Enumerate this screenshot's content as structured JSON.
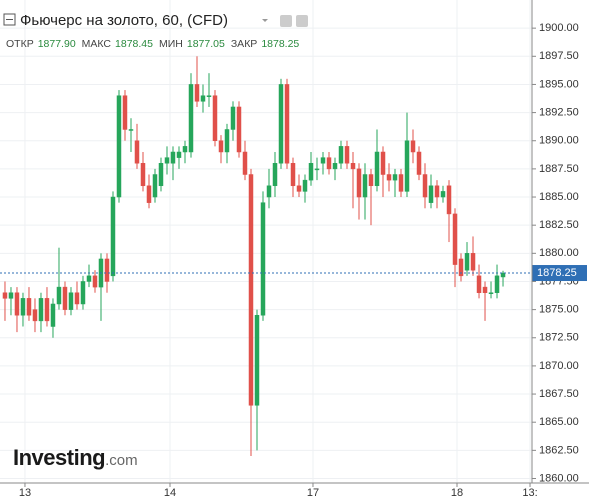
{
  "chart_data": {
    "type": "candlestick",
    "title": "Фьючерс на золото, 60, (CFD)",
    "ohlc_header": [
      {
        "name": "ОТКР",
        "value": "1877.90"
      },
      {
        "name": "МАКС",
        "value": "1878.45"
      },
      {
        "name": "МИН",
        "value": "1877.05"
      },
      {
        "name": "ЗАКР",
        "value": "1878.25"
      }
    ],
    "watermark": "Investing",
    "watermark_suffix": ".com",
    "up_color": "#26a65b",
    "down_color": "#e0504a",
    "last_price_color": "#2f6fb5",
    "grid": true,
    "open": [
      1876.5,
      1876,
      1876.5,
      1874.5,
      1876,
      1875,
      1874,
      1876,
      1873.5,
      1875.5,
      1877,
      1875,
      1876.5,
      1875.5,
      1877.5,
      1878,
      1877,
      1879.5,
      1878,
      1885,
      1894,
      1891,
      1890,
      1888,
      1886,
      1885,
      1886,
      1888,
      1888,
      1888.5,
      1889,
      1889,
      1895,
      1893.5,
      1894,
      1894,
      1890,
      1889,
      1891,
      1893,
      1889,
      1887,
      1866.5,
      1874.5,
      1885,
      1886,
      1888,
      1895,
      1888,
      1886,
      1885.5,
      1886.5,
      1887.5,
      1888,
      1888.5,
      1887.5,
      1888,
      1889.5,
      1888,
      1887.5,
      1885,
      1887,
      1886,
      1889,
      1887,
      1886.5,
      1887,
      1885.5,
      1890,
      1889,
      1887,
      1884.5,
      1886,
      1885,
      1886,
      1883.5,
      1879.5,
      1878.5,
      1880,
      1878,
      1877,
      1876.5,
      1876.5,
      1877.9
    ],
    "high": [
      1877.5,
      1877,
      1877,
      1876.5,
      1877,
      1876,
      1876.5,
      1877,
      1876,
      1880.5,
      1877.5,
      1877,
      1877.5,
      1878,
      1879,
      1878.5,
      1880,
      1880,
      1885.5,
      1894.5,
      1894.5,
      1892,
      1891.5,
      1889,
      1887,
      1887.5,
      1888.5,
      1889.5,
      1889.5,
      1889.5,
      1890,
      1896,
      1897.5,
      1895,
      1896,
      1894.5,
      1890.5,
      1891.5,
      1893.5,
      1893.5,
      1890,
      1887.5,
      1875,
      1885.5,
      1887.5,
      1889,
      1895.5,
      1895.5,
      1888.5,
      1887,
      1887,
      1889,
      1888.5,
      1889,
      1889,
      1888.5,
      1890,
      1890,
      1889,
      1888,
      1888,
      1887.5,
      1891,
      1889.5,
      1888,
      1887.5,
      1887.5,
      1892.5,
      1891,
      1889.5,
      1888,
      1887,
      1886.5,
      1886,
      1886.5,
      1884,
      1880,
      1881,
      1881.5,
      1879,
      1877.5,
      1877.5,
      1879,
      1878.45
    ],
    "low": [
      1874,
      1874.5,
      1873,
      1873.5,
      1874,
      1873,
      1873,
      1873.5,
      1872.5,
      1875,
      1874.5,
      1874.5,
      1875,
      1875,
      1877,
      1876.5,
      1874,
      1876.5,
      1877.5,
      1884.5,
      1890,
      1889,
      1887.5,
      1885.5,
      1884,
      1884.5,
      1885.5,
      1887,
      1886.5,
      1887.5,
      1888,
      1888.5,
      1893,
      1892.5,
      1893,
      1889.5,
      1888,
      1888,
      1890,
      1888.5,
      1886.5,
      1862,
      1862.5,
      1874,
      1884,
      1885,
      1887.5,
      1887.5,
      1885,
      1885,
      1884.5,
      1886,
      1886.5,
      1887,
      1887,
      1886.5,
      1887.5,
      1887.5,
      1884,
      1883,
      1883,
      1882.5,
      1885.5,
      1885,
      1885.5,
      1885,
      1885,
      1885,
      1888,
      1886.5,
      1884,
      1884,
      1884,
      1884.5,
      1881,
      1877,
      1877.5,
      1878,
      1878,
      1876,
      1874,
      1876,
      1876,
      1877.05
    ],
    "close": [
      1876,
      1876.5,
      1874.5,
      1876,
      1874.5,
      1874,
      1876,
      1874,
      1875.5,
      1877,
      1875,
      1876.5,
      1875.5,
      1877.5,
      1878,
      1877,
      1879.5,
      1877.5,
      1885,
      1894,
      1891,
      1891,
      1888,
      1886,
      1884.5,
      1887,
      1888,
      1888.5,
      1889,
      1889,
      1889.5,
      1895,
      1893.5,
      1894,
      1894,
      1890,
      1889,
      1891,
      1893,
      1889,
      1887,
      1866.5,
      1874.5,
      1884.5,
      1886,
      1888,
      1895,
      1888,
      1886,
      1885.5,
      1886.5,
      1888,
      1887.5,
      1888.5,
      1887.5,
      1888,
      1889.5,
      1888,
      1887.5,
      1885,
      1887,
      1886,
      1889,
      1887,
      1886.5,
      1887,
      1885.5,
      1890,
      1889,
      1887,
      1885,
      1886,
      1885,
      1885.5,
      1883.5,
      1879,
      1878,
      1880,
      1878.5,
      1876.5,
      1876.5,
      1876.5,
      1878,
      1878.25
    ],
    "xlim": [
      -0.83,
      87.83
    ],
    "xticks": [
      {
        "value": 3.33,
        "label": "13"
      },
      {
        "value": 27.5,
        "label": "14"
      },
      {
        "value": 51.33,
        "label": "17"
      },
      {
        "value": 75.33,
        "label": "18"
      },
      {
        "value": 87.5,
        "label": "13:"
      }
    ],
    "ylim": [
      1859.6,
      1902.5
    ],
    "yticks": [
      {
        "value": 1860,
        "label": "1860.00"
      },
      {
        "value": 1862.5,
        "label": "1862.50"
      },
      {
        "value": 1865,
        "label": "1865.00"
      },
      {
        "value": 1867.5,
        "label": "1867.50"
      },
      {
        "value": 1870,
        "label": "1870.00"
      },
      {
        "value": 1872.5,
        "label": "1872.50"
      },
      {
        "value": 1875,
        "label": "1875.00"
      },
      {
        "value": 1877.5,
        "label": "1877.50"
      },
      {
        "value": 1880,
        "label": "1880.00"
      },
      {
        "value": 1882.5,
        "label": "1882.50"
      },
      {
        "value": 1885,
        "label": "1885.00"
      },
      {
        "value": 1887.5,
        "label": "1887.50"
      },
      {
        "value": 1890,
        "label": "1890.00"
      },
      {
        "value": 1892.5,
        "label": "1892.50"
      },
      {
        "value": 1895,
        "label": "1895.00"
      },
      {
        "value": 1897.5,
        "label": "1897.50"
      },
      {
        "value": 1900,
        "label": "1900.00"
      }
    ]
  }
}
